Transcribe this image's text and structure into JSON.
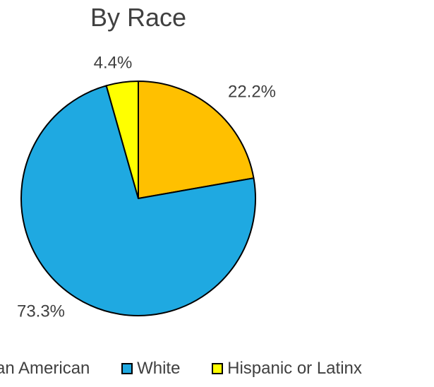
{
  "chart_data": {
    "type": "pie",
    "title": "By Race",
    "slices": [
      {
        "name": "African American",
        "value": 22.2,
        "label": "22.2%",
        "color": "#FFC000"
      },
      {
        "name": "White",
        "value": 73.3,
        "label": "73.3%",
        "color": "#1FA9E1"
      },
      {
        "name": "Hispanic or Latinx",
        "value": 4.4,
        "label": "4.4%",
        "color": "#FFFF00"
      }
    ],
    "start_angle": "12 o'clock",
    "direction": "clockwise",
    "legend_position": "bottom",
    "legend_labels": [
      "an American",
      "White",
      "Hispanic or Latinx"
    ]
  }
}
